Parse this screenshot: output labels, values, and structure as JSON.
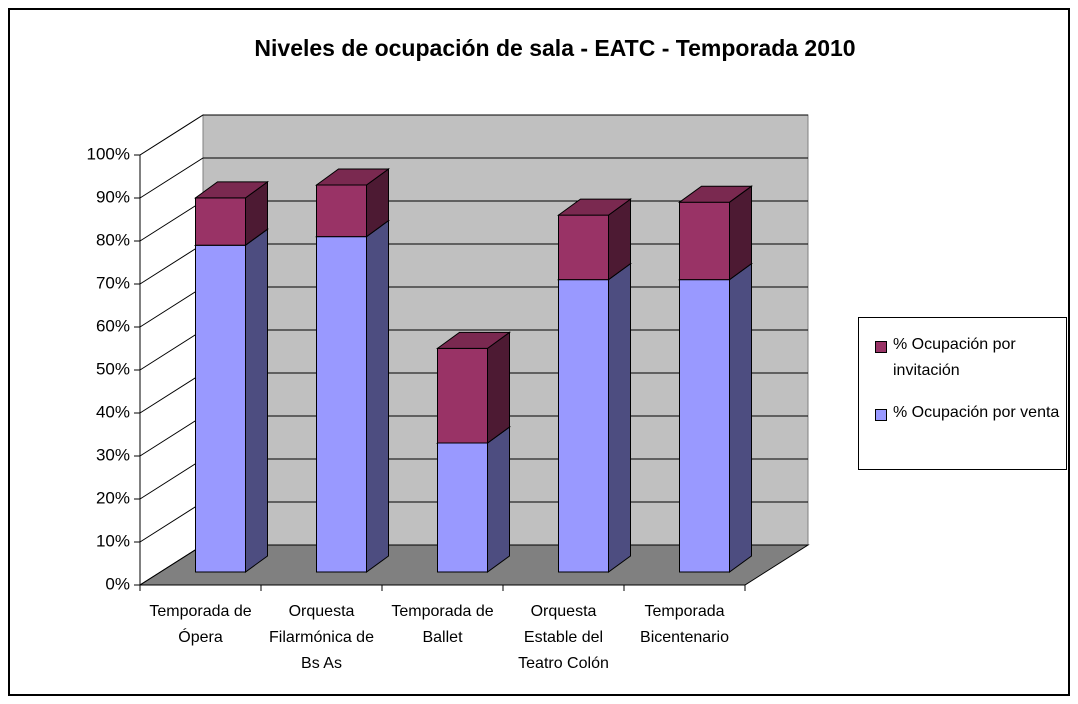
{
  "chart_data": {
    "type": "bar3d_stacked",
    "title": "Niveles de ocupación de sala - EATC - Temporada 2010",
    "categories": [
      "Temporada de Ópera",
      "Orquesta Filarmónica de Bs As",
      "Temporada de Ballet",
      "Orquesta Estable del Teatro Colón",
      "Temporada Bicentenario"
    ],
    "series": [
      {
        "name": "% Ocupación por venta",
        "color": "#9999ff",
        "values": [
          76,
          78,
          30,
          68,
          68
        ]
      },
      {
        "name": "% Ocupación por invitación",
        "color": "#993366",
        "values": [
          11,
          12,
          22,
          15,
          18
        ]
      }
    ],
    "ylim": [
      0,
      100
    ],
    "yticks": [
      {
        "value": 0,
        "label": "0%"
      },
      {
        "value": 10,
        "label": "10%"
      },
      {
        "value": 20,
        "label": "20%"
      },
      {
        "value": 30,
        "label": "30%"
      },
      {
        "value": 40,
        "label": "40%"
      },
      {
        "value": 50,
        "label": "50%"
      },
      {
        "value": 60,
        "label": "60%"
      },
      {
        "value": 70,
        "label": "70%"
      },
      {
        "value": 80,
        "label": "80%"
      },
      {
        "value": 90,
        "label": "90%"
      },
      {
        "value": 100,
        "label": "100%"
      }
    ],
    "grid": true,
    "legend": "right"
  }
}
